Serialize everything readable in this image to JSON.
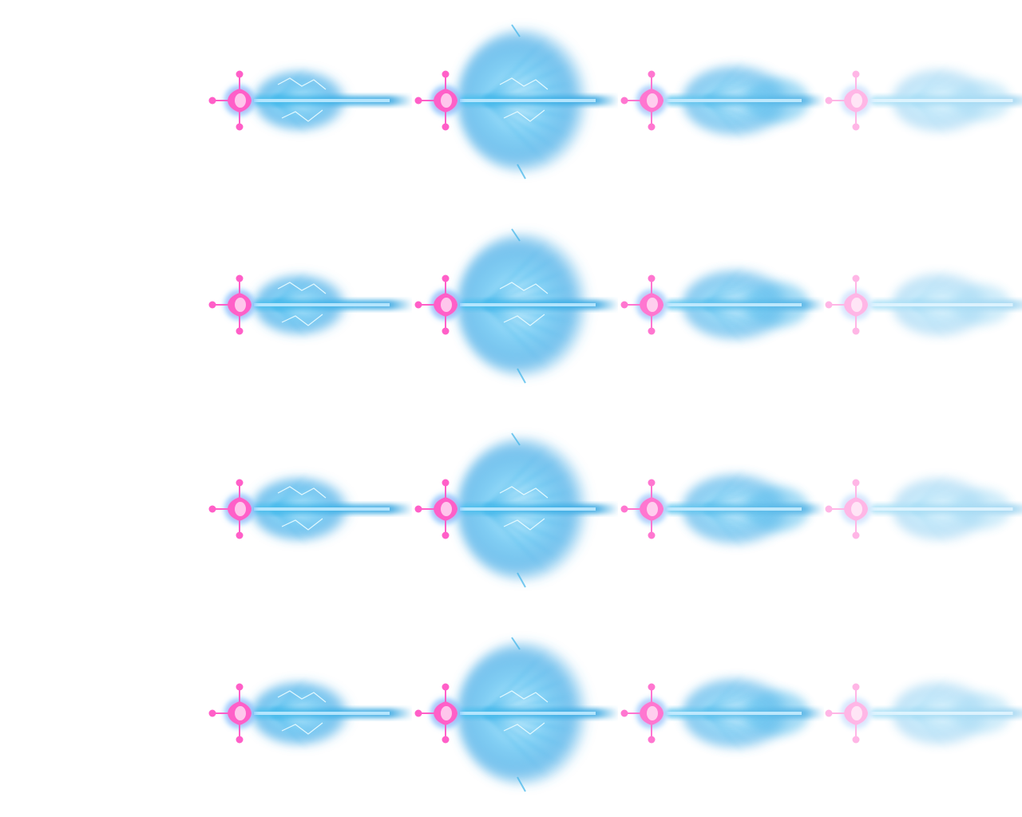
{
  "sprite_sheet": {
    "description_visible": "",
    "rows": 4,
    "columns": 4,
    "colors": {
      "background": "#ffffff",
      "crystal_pink": "#ff5fc8",
      "crystal_core": "#ffc6ec",
      "halo_blue": "#4aa6ff",
      "blast_blue": "#3fb4ea",
      "blast_light": "#bfeaff",
      "spark": "#e8fbff"
    },
    "frames": [
      {
        "row": 0,
        "col": 0,
        "opacity": 1.0,
        "blast_scale": 0.85,
        "kind": "burst-spark"
      },
      {
        "row": 0,
        "col": 1,
        "opacity": 1.0,
        "blast_scale": 1.2,
        "kind": "burst-large"
      },
      {
        "row": 0,
        "col": 2,
        "opacity": 0.85,
        "blast_scale": 1.0,
        "kind": "burst-fade"
      },
      {
        "row": 0,
        "col": 3,
        "opacity": 0.45,
        "blast_scale": 0.9,
        "kind": "burst-trail"
      },
      {
        "row": 1,
        "col": 0,
        "opacity": 1.0,
        "blast_scale": 0.85,
        "kind": "burst-spark"
      },
      {
        "row": 1,
        "col": 1,
        "opacity": 1.0,
        "blast_scale": 1.2,
        "kind": "burst-large"
      },
      {
        "row": 1,
        "col": 2,
        "opacity": 0.85,
        "blast_scale": 1.0,
        "kind": "burst-fade"
      },
      {
        "row": 1,
        "col": 3,
        "opacity": 0.45,
        "blast_scale": 0.9,
        "kind": "burst-trail"
      },
      {
        "row": 2,
        "col": 0,
        "opacity": 1.0,
        "blast_scale": 0.9,
        "kind": "burst-spark"
      },
      {
        "row": 2,
        "col": 1,
        "opacity": 1.0,
        "blast_scale": 1.2,
        "kind": "burst-large"
      },
      {
        "row": 2,
        "col": 2,
        "opacity": 0.85,
        "blast_scale": 1.0,
        "kind": "burst-fade"
      },
      {
        "row": 2,
        "col": 3,
        "opacity": 0.45,
        "blast_scale": 0.9,
        "kind": "burst-trail"
      },
      {
        "row": 3,
        "col": 0,
        "opacity": 1.0,
        "blast_scale": 0.9,
        "kind": "burst-spark"
      },
      {
        "row": 3,
        "col": 1,
        "opacity": 1.0,
        "blast_scale": 1.2,
        "kind": "burst-large"
      },
      {
        "row": 3,
        "col": 2,
        "opacity": 0.85,
        "blast_scale": 1.0,
        "kind": "burst-fade"
      },
      {
        "row": 3,
        "col": 3,
        "opacity": 0.45,
        "blast_scale": 0.9,
        "kind": "burst-trail"
      }
    ]
  }
}
